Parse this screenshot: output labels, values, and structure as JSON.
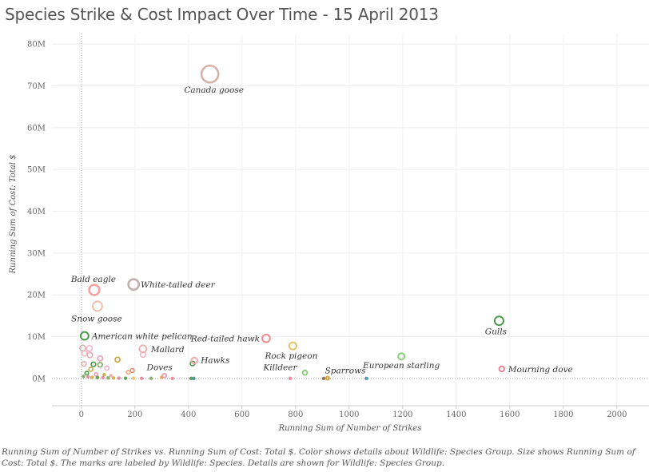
{
  "title": "Species Strike & Cost Impact Over Time - 15 April 2013",
  "caption": "Running Sum of Number of Strikes vs. Running Sum of Cost: Total $.  Color shows details about Wildlife: Species Group.  Size shows Running Sum of Cost: Total $.  The marks are labeled by Wildlife: Species.  Details are shown for Wildlife: Species Group.",
  "chart_data": {
    "type": "scatter",
    "xlabel": "Running Sum of Number of Strikes",
    "ylabel": "Running Sum of Cost: Total $",
    "xlim": [
      -110,
      2120
    ],
    "ylim": [
      -6500000,
      82500000
    ],
    "x_ticks": [
      0,
      200,
      400,
      600,
      800,
      1000,
      1200,
      1400,
      1600,
      1800,
      2000
    ],
    "x_tick_labels": [
      "0",
      "200",
      "400",
      "600",
      "800",
      "1000",
      "1200",
      "1400",
      "1600",
      "1800",
      "2000"
    ],
    "y_ticks": [
      0,
      10000000,
      20000000,
      30000000,
      40000000,
      50000000,
      60000000,
      70000000,
      80000000
    ],
    "y_tick_labels": [
      "0M",
      "10M",
      "20M",
      "30M",
      "40M",
      "50M",
      "60M",
      "70M",
      "80M"
    ],
    "grid": true,
    "points": [
      {
        "label": "Canada goose",
        "x": 480,
        "y": 72800000,
        "color": "#d4b3a6"
      },
      {
        "label": "Bald eagle",
        "x": 48,
        "y": 21200000,
        "color": "#f4a3a3"
      },
      {
        "label": "White-tailed deer",
        "x": 195,
        "y": 22500000,
        "color": "#c4b0ae"
      },
      {
        "label": "Snow goose",
        "x": 60,
        "y": 17300000,
        "color": "#e7c0b0"
      },
      {
        "label": "American white pelican",
        "x": 12,
        "y": 10200000,
        "color": "#4a9a48"
      },
      {
        "label": "Gulls",
        "x": 1560,
        "y": 13800000,
        "color": "#4a9a48"
      },
      {
        "label": "Red-tailed hawk",
        "x": 690,
        "y": 9600000,
        "color": "#f28b8b"
      },
      {
        "label": "Rock pigeon",
        "x": 790,
        "y": 7800000,
        "color": "#e8c26a"
      },
      {
        "label": "Mallard",
        "x": 230,
        "y": 7100000,
        "color": "#e9b3b3"
      },
      {
        "label": "Hawks",
        "x": 422,
        "y": 4300000,
        "color": "#f2a9a9"
      },
      {
        "label": "European starling",
        "x": 1195,
        "y": 5300000,
        "color": "#8ccd7c"
      },
      {
        "label": "Mourning dove",
        "x": 1570,
        "y": 2300000,
        "color": "#e58296"
      },
      {
        "label": "Killdeer",
        "x": 835,
        "y": 1400000,
        "color": "#8ccd7c"
      },
      {
        "label": "Sparrows",
        "x": 920,
        "y": 100000,
        "color": "#d9a441"
      },
      {
        "label": "Doves",
        "x": 310,
        "y": 700000,
        "color": "#e8a0b4"
      }
    ],
    "unlabeled_points": [
      {
        "x": 5,
        "y": 7300000,
        "color": "#c9b3b0"
      },
      {
        "x": 30,
        "y": 7200000,
        "color": "#f6b6c7"
      },
      {
        "x": 12,
        "y": 6000000,
        "color": "#f4b5c0"
      },
      {
        "x": 32,
        "y": 5600000,
        "color": "#e8a9b6"
      },
      {
        "x": 230,
        "y": 5700000,
        "color": "#f2b4c4"
      },
      {
        "x": 70,
        "y": 4800000,
        "color": "#e8a0b4"
      },
      {
        "x": 135,
        "y": 4500000,
        "color": "#c8a53f"
      },
      {
        "x": 10,
        "y": 3500000,
        "color": "#e7b0b0"
      },
      {
        "x": 45,
        "y": 3400000,
        "color": "#4a9a48"
      },
      {
        "x": 70,
        "y": 3300000,
        "color": "#7aa85c"
      },
      {
        "x": 95,
        "y": 2500000,
        "color": "#f2b0c6"
      },
      {
        "x": 35,
        "y": 2200000,
        "color": "#c8a53f"
      },
      {
        "x": 190,
        "y": 1900000,
        "color": "#e58a6a"
      },
      {
        "x": 175,
        "y": 1500000,
        "color": "#f0a88c"
      },
      {
        "x": 415,
        "y": 3600000,
        "color": "#4a9a48"
      },
      {
        "x": 20,
        "y": 1300000,
        "color": "#4a9a48"
      },
      {
        "x": 55,
        "y": 1000000,
        "color": "#e8a0b4"
      },
      {
        "x": 85,
        "y": 900000,
        "color": "#c8a53f"
      },
      {
        "x": 110,
        "y": 700000,
        "color": "#f2a9a9"
      },
      {
        "x": 8,
        "y": 500000,
        "color": "#7aa85c"
      },
      {
        "x": 25,
        "y": 400000,
        "color": "#e58296"
      },
      {
        "x": 40,
        "y": 300000,
        "color": "#d9a441"
      },
      {
        "x": 60,
        "y": 250000,
        "color": "#4a9a48"
      },
      {
        "x": 80,
        "y": 200000,
        "color": "#e58296"
      },
      {
        "x": 100,
        "y": 150000,
        "color": "#7aa85c"
      },
      {
        "x": 120,
        "y": 120000,
        "color": "#d9a441"
      },
      {
        "x": 140,
        "y": 100000,
        "color": "#e58296"
      },
      {
        "x": 165,
        "y": 80000,
        "color": "#4a9a48"
      },
      {
        "x": 195,
        "y": 60000,
        "color": "#e8c26a"
      },
      {
        "x": 225,
        "y": 50000,
        "color": "#e58296"
      },
      {
        "x": 260,
        "y": 40000,
        "color": "#7aa85c"
      },
      {
        "x": 300,
        "y": 300000,
        "color": "#d9a441"
      },
      {
        "x": 340,
        "y": 30000,
        "color": "#e58296"
      },
      {
        "x": 410,
        "y": 20000,
        "color": "#4a9a48"
      },
      {
        "x": 420,
        "y": 20000,
        "color": "#3d8f9b"
      },
      {
        "x": 780,
        "y": 20000,
        "color": "#e58296"
      },
      {
        "x": 905,
        "y": 20000,
        "color": "#8a6d3b"
      },
      {
        "x": 1065,
        "y": 20000,
        "color": "#3d8f9b"
      }
    ]
  }
}
